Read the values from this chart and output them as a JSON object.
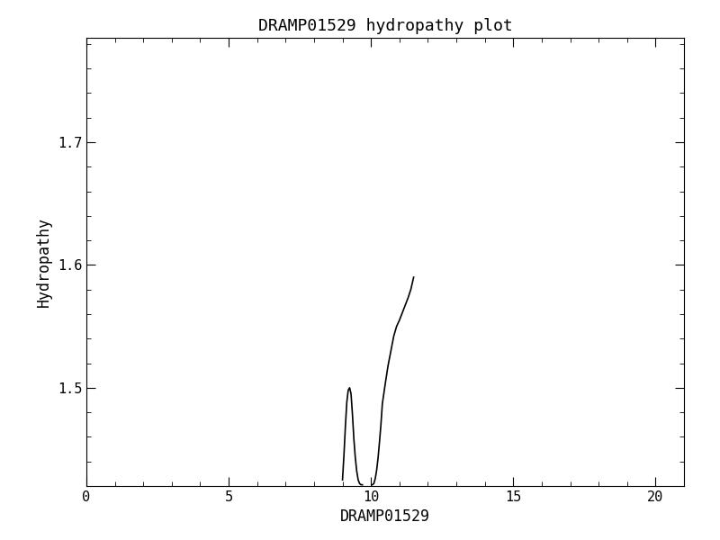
{
  "title": "DRAMP01529 hydropathy plot",
  "xlabel": "DRAMP01529",
  "ylabel": "Hydropathy",
  "xlim": [
    0,
    21
  ],
  "ylim": [
    1.42,
    1.785
  ],
  "xticks": [
    0,
    5,
    10,
    15,
    20
  ],
  "yticks": [
    1.5,
    1.6,
    1.7
  ],
  "line1_x": [
    9.0,
    9.05,
    9.1,
    9.15,
    9.2,
    9.25,
    9.3,
    9.35,
    9.4,
    9.45,
    9.5,
    9.55,
    9.6,
    9.65,
    9.7
  ],
  "line1_y": [
    1.425,
    1.445,
    1.468,
    1.488,
    1.498,
    1.5,
    1.495,
    1.478,
    1.458,
    1.443,
    1.432,
    1.425,
    1.422,
    1.421,
    1.421
  ],
  "line2_x": [
    10.05,
    10.1,
    10.15,
    10.2,
    10.25,
    10.3,
    10.35,
    10.4,
    10.5,
    10.6,
    10.7,
    10.8,
    10.9,
    11.0,
    11.1,
    11.2,
    11.3,
    11.4,
    11.5
  ],
  "line2_y": [
    1.421,
    1.422,
    1.426,
    1.433,
    1.443,
    1.456,
    1.47,
    1.487,
    1.503,
    1.518,
    1.53,
    1.542,
    1.55,
    1.555,
    1.561,
    1.567,
    1.573,
    1.58,
    1.59
  ],
  "background_color": "#ffffff",
  "line_color": "#000000",
  "font_family": "DejaVu Sans Mono",
  "title_fontsize": 13,
  "label_fontsize": 12,
  "tick_fontsize": 11,
  "linewidth": 1.2,
  "figsize": [
    8.0,
    6.0
  ],
  "dpi": 100
}
